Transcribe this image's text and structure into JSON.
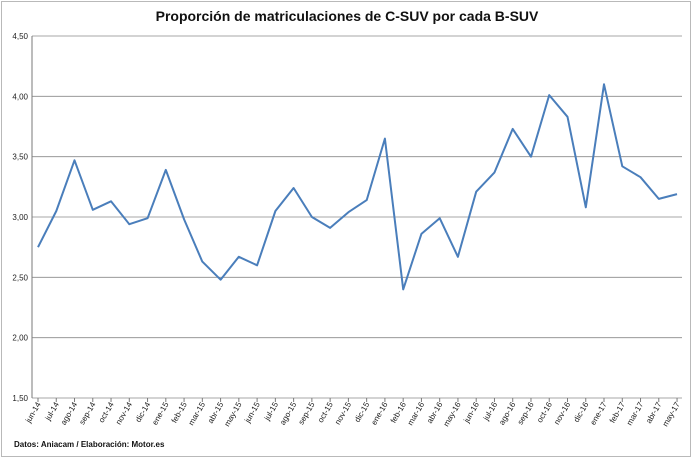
{
  "chart_data": {
    "type": "line",
    "title": "Proporción de matriculaciones de C-SUV por cada B-SUV",
    "source_note": "Datos: Aniacam  / Elaboración: Motor.es",
    "ylim": [
      1.5,
      4.5
    ],
    "yticks": [
      "1,50",
      "2,00",
      "2,50",
      "3,00",
      "3,50",
      "4,00",
      "4,50"
    ],
    "grid": true,
    "line_color": "#4a7ebb",
    "categories": [
      "jun-14",
      "jul-14",
      "ago-14",
      "sep-14",
      "oct-14",
      "nov-14",
      "dic-14",
      "ene-15",
      "feb-15",
      "mar-15",
      "abr-15",
      "may-15",
      "jun-15",
      "jul-15",
      "ago-15",
      "sep-15",
      "oct-15",
      "nov-15",
      "dic-15",
      "ene-16",
      "feb-16",
      "mar-16",
      "abr-16",
      "may-16",
      "jun-16",
      "jul-16",
      "ago-16",
      "sep-16",
      "oct-16",
      "nov-16",
      "dic-16",
      "ene-17",
      "feb-17",
      "mar-17",
      "abr-17",
      "may-17"
    ],
    "values": [
      2.75,
      3.05,
      3.47,
      3.06,
      3.13,
      2.94,
      2.99,
      3.39,
      2.98,
      2.63,
      2.48,
      2.67,
      2.6,
      3.05,
      3.24,
      3.0,
      2.91,
      3.04,
      3.14,
      3.65,
      2.4,
      2.86,
      2.99,
      2.67,
      3.21,
      3.37,
      3.73,
      3.5,
      4.01,
      3.83,
      3.08,
      4.1,
      3.42,
      3.33,
      3.15,
      3.19
    ]
  }
}
